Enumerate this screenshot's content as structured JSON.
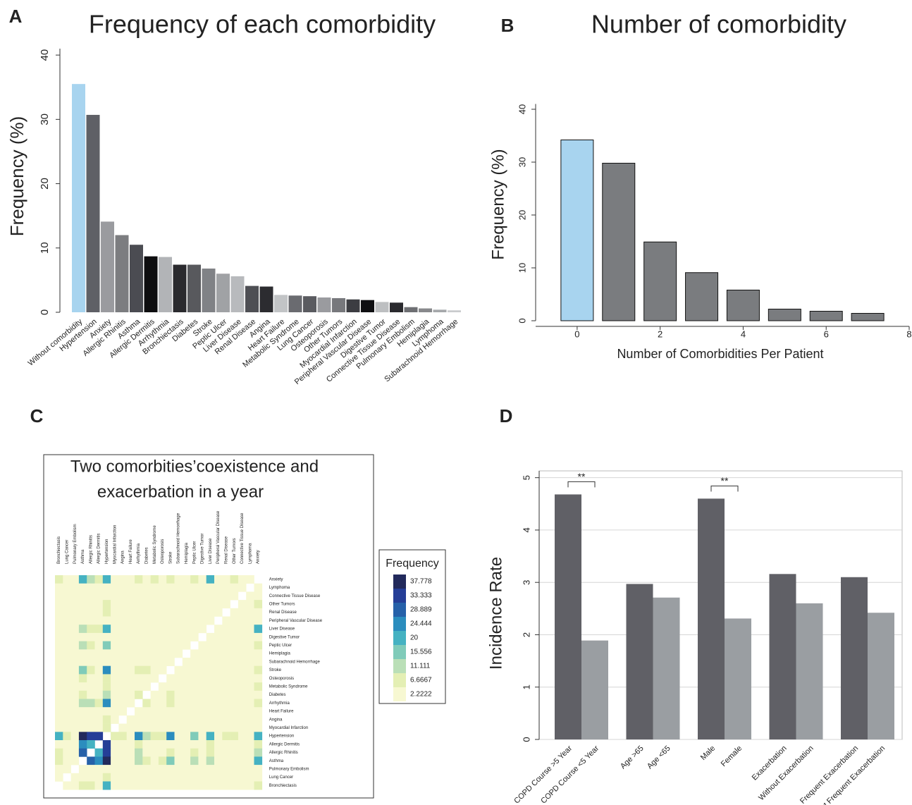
{
  "chart_data": [
    {
      "type": "bar",
      "panel_label": "A",
      "title": "Frequency of each comorbidity",
      "ylabel": "Frequency (%)",
      "categories": [
        "Without comorbidity",
        "Hypertension",
        "Anxiety",
        "Allergic Rhinitis",
        "Asthma",
        "Allergic Dermitis",
        "Arrhythmia",
        "Bronchiectasis",
        "Diabetes",
        "Stroke",
        "Peptic Ulcer",
        "Liver Disease",
        "Renal Disease",
        "Angina",
        "Heart Failure",
        "Metabolic Syndrome",
        "Lung Cancer",
        "Osteoporosis",
        "Other Tumors",
        "Myocardial Infarction",
        "Peripheral Vascular Disease",
        "Digestive Tumor",
        "Connective Tissue Disease",
        "Pulmonary Embolism",
        "Hemiplagia",
        "Lymphoma",
        "Subarachnoid Hemorrhage"
      ],
      "values": [
        35.5,
        30.7,
        14.1,
        12.0,
        10.5,
        8.7,
        8.6,
        7.4,
        7.4,
        6.8,
        6.0,
        5.6,
        4.1,
        4.0,
        2.7,
        2.6,
        2.5,
        2.3,
        2.2,
        2.0,
        1.9,
        1.6,
        1.5,
        0.8,
        0.6,
        0.4,
        0.3
      ],
      "colors": [
        "#a8d4ef",
        "#5f6066",
        "#9a9b9f",
        "#7c7d80",
        "#4b4c52",
        "#0d0d0f",
        "#b2b4b7",
        "#2a2a2e",
        "#58595d",
        "#808286",
        "#a0a2a5",
        "#b8babd",
        "#4e4f54",
        "#2c2c30",
        "#c2c4c6",
        "#6a6b70",
        "#5a5b60",
        "#9a9b9f",
        "#77787c",
        "#3c3d42",
        "#0f0f12",
        "#bdbfc1",
        "#2a2a2e",
        "#6e6f73",
        "#88898c",
        "#a5a7aa",
        "#c9cbcd"
      ],
      "ylim": [
        0,
        41
      ],
      "yticks": [
        0,
        10,
        20,
        30,
        40
      ]
    },
    {
      "type": "bar",
      "panel_label": "B",
      "title": "Number of comorbidity",
      "ylabel": "Frequency (%)",
      "xlabel": "Number of Comorbidities Per Patient",
      "x": [
        0,
        1,
        2,
        3,
        4,
        5,
        6,
        7
      ],
      "values": [
        34.2,
        29.8,
        14.9,
        9.1,
        5.8,
        2.2,
        1.8,
        1.4
      ],
      "colors": [
        "#a8d4ef",
        "#7a7c7f",
        "#7a7c7f",
        "#7a7c7f",
        "#7a7c7f",
        "#7a7c7f",
        "#7a7c7f",
        "#7a7c7f"
      ],
      "xlim": [
        -1,
        8
      ],
      "xticks": [
        0,
        2,
        4,
        6,
        8
      ],
      "ylim": [
        0,
        41
      ],
      "yticks": [
        0,
        10,
        20,
        30,
        40
      ]
    },
    {
      "type": "heatmap",
      "panel_label": "C",
      "title": [
        "Two comorbities’coexistence and",
        "exacerbation in a year"
      ],
      "columns": [
        "Bronchiectasis",
        "Lung Cancer",
        "Pulmonary Embolism",
        "Asthma",
        "Allergic Rhinitis",
        "Allergic Dermitis",
        "Hypertension",
        "Myocardial Infarction",
        "Angina",
        "Heart Failure",
        "Arrhythmia",
        "Diabetes",
        "Metabolic Syndrome",
        "Osteoporosis",
        "Stroke",
        "Subarachnoid Hemorrhage",
        "Hemiplagia",
        "Peptic Ulcer",
        "Digestive Tumor",
        "Liver Disease",
        "Peripheral Vascular Disease",
        "Renal Disease",
        "Other Tumors",
        "Connective Tissue Disease",
        "Lymphoma",
        "Anxiety"
      ],
      "rows": [
        "Anxiety",
        "Lymphoma",
        "Connective Tissue Disease",
        "Other Tumors",
        "Renal Disease",
        "Peripheral Vascular Disease",
        "Liver Disease",
        "Digestive Tumor",
        "Peptic Ulcer",
        "Hemiplagia",
        "Subarachnoid Hemorrhage",
        "Stroke",
        "Osteoporosis",
        "Metabolic Syndrome",
        "Diabetes",
        "Arrhythmia",
        "Heart Failure",
        "Angina",
        "Myocardial Infarction",
        "Hypertension",
        "Allergic Dermitis",
        "Allergic Rhinitis",
        "Asthma",
        "Pulmonary Embolism",
        "Lung Cancer",
        "Bronchiectasis"
      ],
      "values": [
        [
          6,
          2,
          2,
          18,
          12,
          8,
          20,
          2,
          2,
          2,
          6,
          2,
          6,
          2,
          6,
          2,
          2,
          8,
          2,
          20,
          2,
          2,
          6,
          2,
          2,
          null
        ],
        [
          2,
          2,
          2,
          2,
          2,
          2,
          2,
          2,
          2,
          2,
          2,
          2,
          2,
          2,
          2,
          2,
          2,
          2,
          2,
          2,
          2,
          2,
          2,
          2,
          null,
          2
        ],
        [
          2,
          2,
          2,
          2,
          2,
          2,
          2,
          2,
          2,
          2,
          2,
          2,
          2,
          2,
          2,
          2,
          2,
          2,
          2,
          2,
          2,
          2,
          2,
          null,
          2,
          2
        ],
        [
          2,
          2,
          2,
          2,
          2,
          2,
          8,
          2,
          2,
          2,
          2,
          2,
          2,
          2,
          2,
          2,
          2,
          2,
          2,
          2,
          2,
          2,
          null,
          2,
          2,
          6
        ],
        [
          2,
          2,
          2,
          2,
          2,
          2,
          7,
          2,
          2,
          2,
          2,
          2,
          2,
          2,
          2,
          2,
          2,
          2,
          2,
          2,
          2,
          null,
          2,
          2,
          2,
          2
        ],
        [
          2,
          2,
          2,
          2,
          2,
          2,
          2,
          2,
          2,
          2,
          2,
          2,
          2,
          2,
          2,
          2,
          2,
          2,
          2,
          2,
          null,
          2,
          2,
          2,
          2,
          2
        ],
        [
          2,
          2,
          2,
          12,
          8,
          8,
          20,
          2,
          2,
          2,
          2,
          2,
          2,
          2,
          2,
          2,
          2,
          2,
          2,
          null,
          2,
          2,
          2,
          2,
          2,
          20
        ],
        [
          2,
          2,
          2,
          2,
          2,
          2,
          2,
          2,
          2,
          2,
          2,
          2,
          2,
          2,
          2,
          2,
          2,
          2,
          null,
          2,
          2,
          2,
          2,
          2,
          2,
          2
        ],
        [
          2,
          2,
          2,
          12,
          8,
          2,
          14,
          2,
          2,
          2,
          2,
          2,
          2,
          2,
          2,
          2,
          2,
          null,
          2,
          2,
          2,
          2,
          2,
          2,
          2,
          8
        ],
        [
          2,
          2,
          2,
          2,
          2,
          2,
          2,
          2,
          2,
          2,
          2,
          2,
          2,
          2,
          2,
          2,
          null,
          2,
          2,
          2,
          2,
          2,
          2,
          2,
          2,
          2
        ],
        [
          2,
          2,
          2,
          2,
          2,
          2,
          2,
          2,
          2,
          2,
          2,
          2,
          2,
          2,
          2,
          null,
          2,
          2,
          2,
          2,
          2,
          2,
          2,
          2,
          2,
          2
        ],
        [
          2,
          2,
          2,
          14,
          8,
          2,
          26,
          2,
          2,
          2,
          6,
          6,
          2,
          2,
          null,
          2,
          2,
          2,
          2,
          2,
          2,
          2,
          2,
          2,
          2,
          6
        ],
        [
          2,
          2,
          2,
          6,
          2,
          2,
          7,
          2,
          2,
          2,
          2,
          2,
          2,
          null,
          2,
          2,
          2,
          2,
          2,
          2,
          2,
          2,
          2,
          2,
          2,
          2
        ],
        [
          2,
          2,
          2,
          2,
          2,
          2,
          6,
          2,
          2,
          2,
          2,
          2,
          null,
          2,
          2,
          2,
          2,
          2,
          2,
          2,
          2,
          2,
          2,
          2,
          2,
          6
        ],
        [
          2,
          2,
          2,
          6,
          2,
          2,
          10,
          2,
          2,
          2,
          6,
          null,
          2,
          2,
          6,
          2,
          2,
          2,
          2,
          2,
          2,
          2,
          2,
          2,
          2,
          2
        ],
        [
          2,
          2,
          2,
          10,
          10,
          6,
          25,
          2,
          2,
          2,
          null,
          6,
          2,
          2,
          6,
          2,
          2,
          2,
          2,
          2,
          2,
          2,
          2,
          2,
          2,
          6
        ],
        [
          2,
          2,
          2,
          2,
          2,
          2,
          2,
          2,
          2,
          null,
          2,
          2,
          2,
          2,
          2,
          2,
          2,
          2,
          2,
          2,
          2,
          2,
          2,
          2,
          2,
          2
        ],
        [
          2,
          2,
          2,
          2,
          2,
          2,
          8,
          2,
          null,
          2,
          2,
          2,
          2,
          2,
          2,
          2,
          2,
          2,
          2,
          2,
          2,
          2,
          2,
          2,
          2,
          2
        ],
        [
          2,
          2,
          2,
          2,
          2,
          2,
          6,
          null,
          2,
          2,
          2,
          2,
          2,
          2,
          2,
          2,
          2,
          2,
          2,
          2,
          2,
          2,
          2,
          2,
          2,
          2
        ],
        [
          18,
          6,
          2,
          37,
          33,
          35,
          null,
          6,
          8,
          2,
          25,
          10,
          6,
          7,
          26,
          2,
          2,
          14,
          2,
          20,
          2,
          7,
          8,
          2,
          2,
          20
        ],
        [
          2,
          2,
          2,
          25,
          22,
          null,
          35,
          2,
          2,
          2,
          6,
          2,
          2,
          2,
          2,
          2,
          2,
          2,
          2,
          8,
          2,
          2,
          2,
          2,
          2,
          8
        ],
        [
          6,
          2,
          2,
          30,
          null,
          22,
          33,
          2,
          2,
          2,
          10,
          2,
          2,
          2,
          8,
          2,
          2,
          8,
          2,
          8,
          2,
          2,
          2,
          2,
          2,
          12
        ],
        [
          7,
          2,
          2,
          null,
          30,
          25,
          37,
          2,
          2,
          2,
          10,
          6,
          2,
          6,
          14,
          2,
          2,
          12,
          2,
          12,
          2,
          2,
          2,
          2,
          2,
          18
        ],
        [
          2,
          2,
          null,
          2,
          2,
          2,
          2,
          2,
          2,
          2,
          2,
          2,
          2,
          2,
          2,
          2,
          2,
          2,
          2,
          2,
          2,
          2,
          2,
          2,
          2,
          2
        ],
        [
          2,
          null,
          2,
          2,
          2,
          2,
          6,
          2,
          2,
          2,
          2,
          2,
          2,
          2,
          2,
          2,
          2,
          2,
          2,
          2,
          2,
          2,
          2,
          2,
          2,
          2
        ],
        [
          null,
          2,
          2,
          7,
          6,
          2,
          18,
          2,
          2,
          2,
          2,
          2,
          2,
          2,
          2,
          2,
          2,
          2,
          2,
          2,
          2,
          2,
          2,
          2,
          2,
          6
        ]
      ],
      "colorbar_title": "Frequency",
      "colorbar_ticks": [
        2.2222,
        6.6667,
        11.111,
        15.556,
        20,
        24.444,
        28.889,
        33.333,
        37.778
      ],
      "colorbar_colors": [
        "#f7f8d2",
        "#e4efb4",
        "#badfb7",
        "#80cbb9",
        "#45b2c2",
        "#2b8dbe",
        "#2661a9",
        "#253e97",
        "#222a5c"
      ]
    },
    {
      "type": "bar",
      "panel_label": "D",
      "ylabel": "Incidence Rate",
      "grid": true,
      "categories": [
        "COPD Course >5 Year",
        "COPD Course <5 Year",
        "Age >65",
        "Age <65",
        "Male",
        "Female",
        "Exacerbation",
        "Without Exacerbation",
        "Frequent Exacerbation",
        "Without Frequent Exacerbation"
      ],
      "values": [
        4.68,
        1.89,
        2.97,
        2.71,
        4.6,
        2.31,
        3.16,
        2.6,
        3.1,
        2.42
      ],
      "colors": [
        "#606066",
        "#9a9ea2",
        "#606066",
        "#9a9ea2",
        "#606066",
        "#9a9ea2",
        "#606066",
        "#9a9ea2",
        "#606066",
        "#9a9ea2"
      ],
      "ylim": [
        0,
        5.13
      ],
      "yticks": [
        0,
        1,
        2,
        3,
        4,
        5
      ],
      "annotations": [
        {
          "text": "**",
          "bars": [
            0,
            1
          ]
        },
        {
          "text": "**",
          "bars": [
            4,
            5
          ]
        }
      ]
    }
  ]
}
